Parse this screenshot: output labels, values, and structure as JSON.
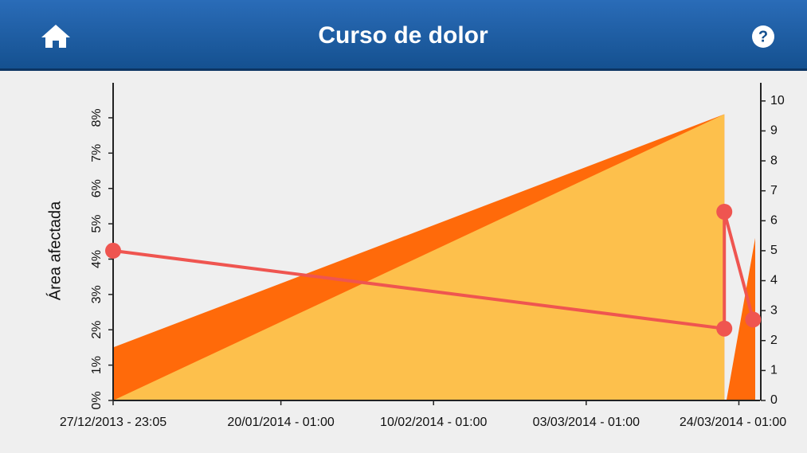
{
  "header": {
    "title": "Curso de dolor",
    "help_icon": "?"
  },
  "chart_data": {
    "type": "line",
    "ylabel": "Área afectada",
    "xlim": [
      "27/12/2013 - 23:05",
      "26/03/2014 - 07:00"
    ],
    "xticks": [
      "27/12/2013 - 23:05",
      "20/01/2014 - 01:00",
      "10/02/2014 - 01:00",
      "03/03/2014 - 01:00",
      "24/03/2014 - 01:00"
    ],
    "ylim": [
      0,
      8.9
    ],
    "yticks": [
      {
        "value": 0,
        "label": "0%"
      },
      {
        "value": 1,
        "label": "1%"
      },
      {
        "value": 2,
        "label": "2%"
      },
      {
        "value": 3,
        "label": "3%"
      },
      {
        "value": 4,
        "label": "4%"
      },
      {
        "value": 5,
        "label": "5%"
      },
      {
        "value": 6,
        "label": "6%"
      },
      {
        "value": 7,
        "label": "7%"
      },
      {
        "value": 8,
        "label": "8%"
      }
    ],
    "y2lim": [
      0,
      10.5
    ],
    "y2ticks": [
      0,
      1,
      2,
      3,
      4,
      5,
      6,
      7,
      8,
      9,
      10
    ],
    "areas": [
      {
        "color": "#ff6a0a",
        "x": [
          "27/12/2013 - 23:05",
          "22/03/2014 - 01:00"
        ],
        "values": [
          1.5,
          8.1
        ]
      },
      {
        "color": "#fdc04c",
        "x": [
          "27/12/2013 - 23:05",
          "22/03/2014 - 01:00"
        ],
        "values": [
          0,
          8.1
        ]
      },
      {
        "color": "#ff6a0a",
        "x": [
          "22/03/2014 - 08:00",
          "26/03/2014 - 07:00"
        ],
        "values": [
          0,
          4.6
        ]
      }
    ],
    "series": [
      {
        "color": "#ef5550",
        "axis": "y2",
        "x": [
          "27/12/2013 - 23:05",
          "22/03/2014 - 01:00",
          "22/03/2014 - 01:00",
          "26/03/2014 - 00:00"
        ],
        "values": [
          5.0,
          2.4,
          6.3,
          2.7
        ]
      }
    ]
  }
}
